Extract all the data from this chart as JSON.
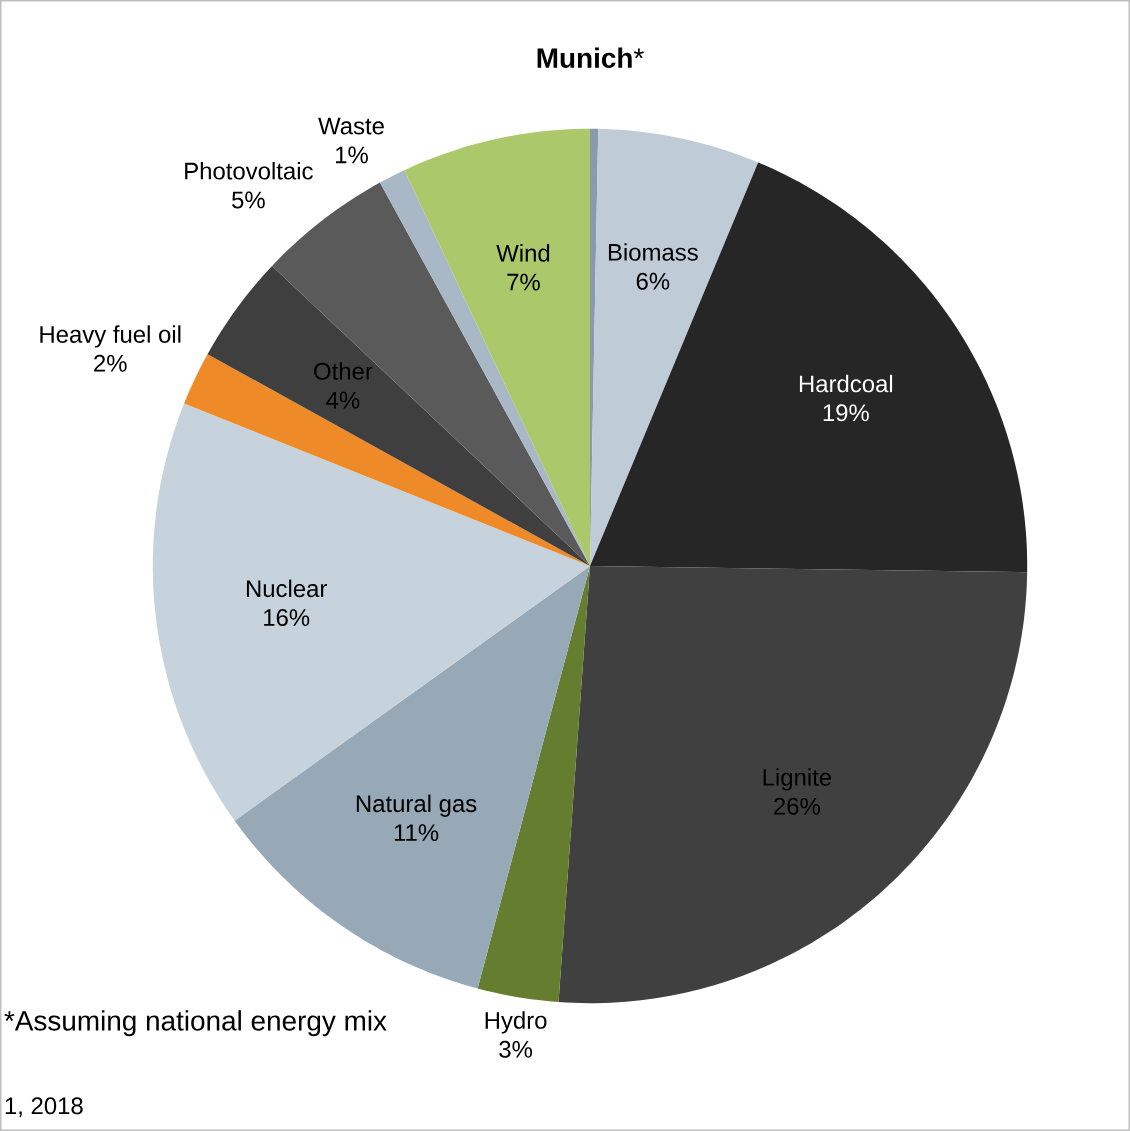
{
  "chart_data": {
    "type": "pie",
    "title": "**Munich***",
    "categories": [
      null,
      "Biomass",
      "Hardcoal",
      "Lignite",
      "Hydro",
      "Natural gas",
      "Nuclear",
      "Heavy fuel oil",
      "Other",
      "Photovoltaic",
      "Waste",
      "Wind"
    ],
    "values": [
      0.3,
      6,
      19,
      26,
      3,
      11,
      16,
      2,
      4,
      5,
      1,
      7
    ],
    "value_labels": [
      null,
      "6%",
      "19%",
      "26%",
      "3%",
      "11%",
      "16%",
      "2%",
      "4%",
      "5%",
      "1%",
      "7%"
    ],
    "colors": [
      "#8a9aab",
      "#bfccd8",
      "#262626",
      "#404040",
      "#647d2e",
      "#97a8b6",
      "#c6d2dc",
      "#ee8a27",
      "#3f3f3f",
      "#5a5a5a",
      "#a9b8c6",
      "#abc86a"
    ],
    "annotations": [
      "*Assuming national energy mix",
      "1, 2018"
    ]
  }
}
